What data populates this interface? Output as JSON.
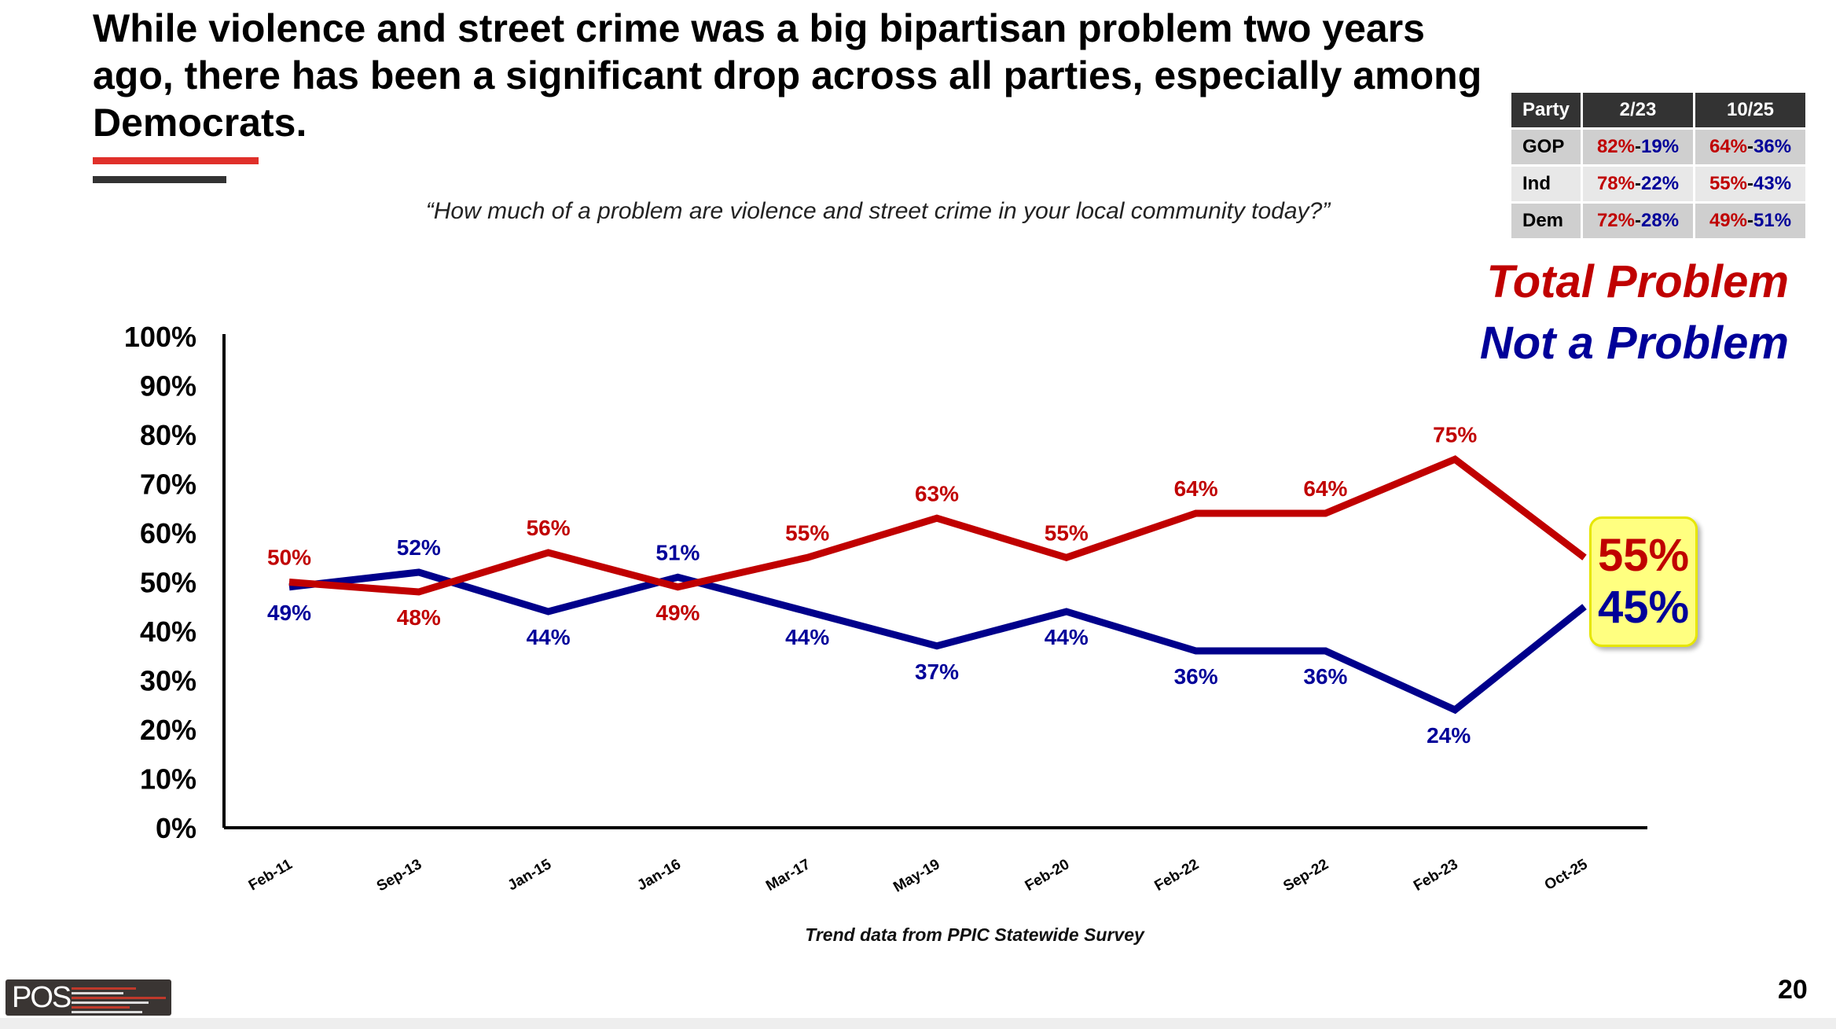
{
  "title": "While violence and street crime was a big bipartisan problem two years ago, there has been a significant drop across all parties, especially among Democrats.",
  "question": "“How much of a problem are violence and street crime in your local community today?”",
  "party_table": {
    "headers": [
      "Party",
      "2/23",
      "10/25"
    ],
    "rows": [
      {
        "party": "GOP",
        "c1a": "82%",
        "c1b": "19%",
        "c2a": "64%",
        "c2b": "36%"
      },
      {
        "party": "Ind",
        "c1a": "78%",
        "c1b": "22%",
        "c2a": "55%",
        "c2b": "43%"
      },
      {
        "party": "Dem",
        "c1a": "72%",
        "c1b": "28%",
        "c2a": "49%",
        "c2b": "51%"
      }
    ],
    "separator": "-"
  },
  "callout": {
    "total": "55%",
    "not": "45%"
  },
  "footer": "Trend data from PPIC Statewide Survey",
  "page_number": "20",
  "logo_text": "POS",
  "colors": {
    "total": "#c00000",
    "not": "#000099",
    "total_line": "#c00000",
    "not_line": "#00008b"
  },
  "chart_data": {
    "type": "line",
    "categories": [
      "Feb-11",
      "Sep-13",
      "Jan-15",
      "Jan-16",
      "Mar-17",
      "May-19",
      "Feb-20",
      "Feb-22",
      "Sep-22",
      "Feb-23",
      "Oct-25"
    ],
    "series": [
      {
        "name": "Total Problem",
        "values": [
          50,
          48,
          56,
          49,
          55,
          63,
          55,
          64,
          64,
          75,
          55
        ]
      },
      {
        "name": "Not a Problem",
        "values": [
          49,
          52,
          44,
          51,
          44,
          37,
          44,
          36,
          36,
          24,
          45
        ]
      }
    ],
    "ylim": [
      0,
      100
    ],
    "yticks": [
      "0%",
      "10%",
      "20%",
      "30%",
      "40%",
      "50%",
      "60%",
      "70%",
      "80%",
      "90%",
      "100%"
    ],
    "legend_placement": "top-right",
    "grid": false
  }
}
